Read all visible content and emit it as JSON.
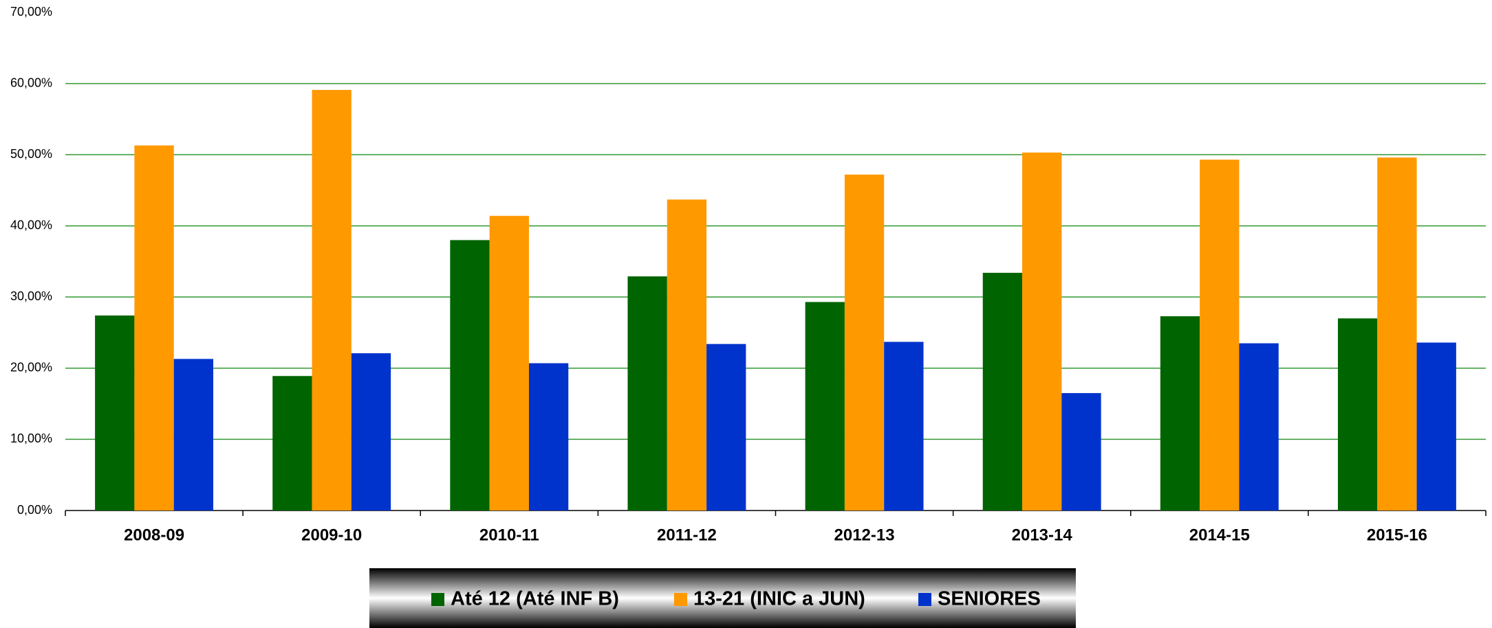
{
  "chart_data": {
    "type": "bar",
    "categories": [
      "2008-09",
      "2009-10",
      "2010-11",
      "2011-12",
      "2012-13",
      "2013-14",
      "2014-15",
      "2015-16"
    ],
    "series": [
      {
        "name": "Até 12 (Até INF B)",
        "color": "#006400",
        "values": [
          27.4,
          18.9,
          38.0,
          32.9,
          29.3,
          33.4,
          27.3,
          27.0
        ]
      },
      {
        "name": "13-21 (INIC a JUN)",
        "color": "#ff9900",
        "values": [
          51.3,
          59.1,
          41.4,
          43.7,
          47.2,
          50.3,
          49.3,
          49.6
        ]
      },
      {
        "name": "SENIORES",
        "color": "#0033cc",
        "values": [
          21.3,
          22.1,
          20.7,
          23.4,
          23.7,
          16.5,
          23.5,
          23.6
        ]
      }
    ],
    "ylim": [
      0,
      70
    ],
    "yticks": [
      {
        "value": 0,
        "label": "0,00%"
      },
      {
        "value": 10,
        "label": "10,00%"
      },
      {
        "value": 20,
        "label": "20,00%"
      },
      {
        "value": 30,
        "label": "30,00%"
      },
      {
        "value": 40,
        "label": "40,00%"
      },
      {
        "value": 50,
        "label": "50,00%"
      },
      {
        "value": 60,
        "label": "60,00%"
      },
      {
        "value": 70,
        "label": "70,00%"
      }
    ],
    "grid": true,
    "grid_color": "#339933",
    "legend": "bottom"
  }
}
